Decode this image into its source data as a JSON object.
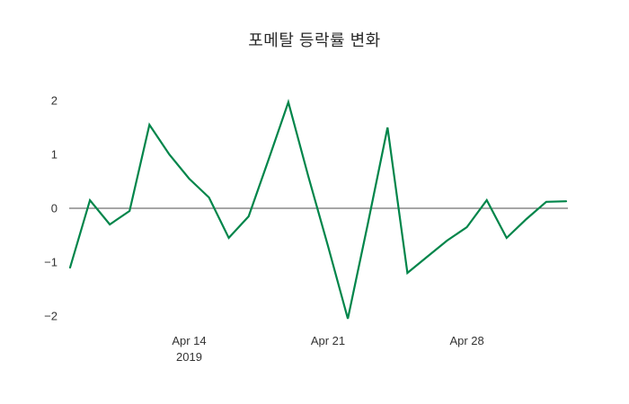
{
  "title": "포메탈 등락률 변화",
  "chart_data": {
    "type": "line",
    "title": "포메탈 등락률 변화",
    "series_name": "등락률",
    "line_color": "#00854a",
    "zero_line_color": "#4d4d4d",
    "grid": false,
    "legend": "none",
    "ylim": [
      -2.3,
      2.3
    ],
    "x": [
      "2019-04-08",
      "2019-04-09",
      "2019-04-10",
      "2019-04-11",
      "2019-04-12",
      "2019-04-13",
      "2019-04-14",
      "2019-04-15",
      "2019-04-16",
      "2019-04-17",
      "2019-04-18",
      "2019-04-19",
      "2019-04-20",
      "2019-04-21",
      "2019-04-22",
      "2019-04-23",
      "2019-04-24",
      "2019-04-25",
      "2019-04-26",
      "2019-04-27",
      "2019-04-28",
      "2019-04-29",
      "2019-04-30",
      "2019-05-01",
      "2019-05-02",
      "2019-05-03"
    ],
    "values": [
      -1.1,
      0.15,
      -0.3,
      -0.05,
      1.55,
      1.0,
      0.55,
      0.2,
      -0.55,
      -0.15,
      0.9,
      1.97,
      0.6,
      -0.7,
      -2.05,
      -0.3,
      1.5,
      -1.2,
      -0.9,
      -0.6,
      -0.35,
      0.15,
      -0.55,
      -0.2,
      0.12,
      0.13
    ],
    "yticks": [
      {
        "value": 2,
        "label": "2"
      },
      {
        "value": 1,
        "label": "1"
      },
      {
        "value": 0,
        "label": "0"
      },
      {
        "value": -1,
        "label": "−1"
      },
      {
        "value": -2,
        "label": "−2"
      }
    ],
    "xticks": [
      {
        "index": 6,
        "label": "Apr 14",
        "sub": "2019"
      },
      {
        "index": 13,
        "label": "Apr 21"
      },
      {
        "index": 20,
        "label": "Apr 28"
      }
    ]
  }
}
